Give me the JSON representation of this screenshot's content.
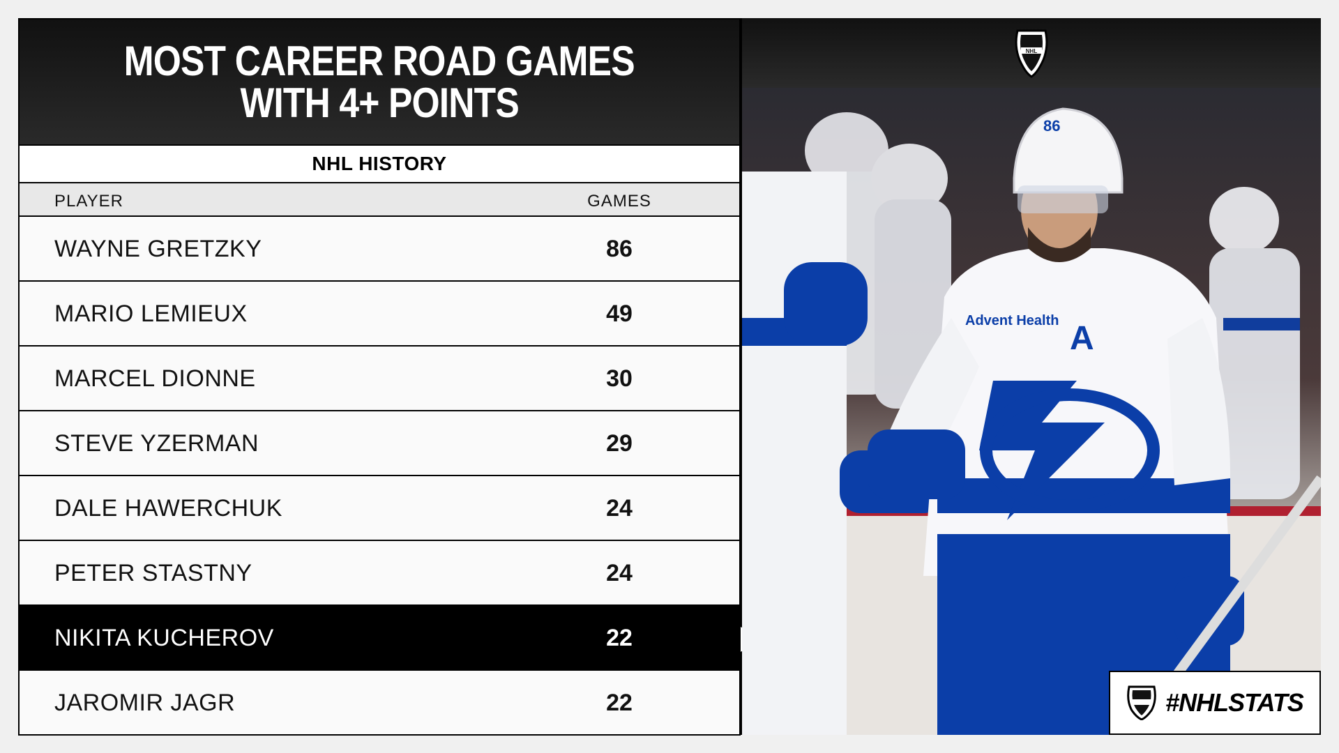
{
  "header": {
    "title_line1": "MOST CAREER ROAD GAMES",
    "title_line2": "WITH 4+ POINTS",
    "subtitle": "NHL HISTORY"
  },
  "table": {
    "col_player": "PLAYER",
    "col_games": "GAMES",
    "rows": [
      {
        "player": "WAYNE GRETZKY",
        "games": "86"
      },
      {
        "player": "MARIO LEMIEUX",
        "games": "49"
      },
      {
        "player": "MARCEL DIONNE",
        "games": "30"
      },
      {
        "player": "STEVE YZERMAN",
        "games": "29"
      },
      {
        "player": "DALE HAWERCHUK",
        "games": "24"
      },
      {
        "player": "PETER STASTNY",
        "games": "24"
      },
      {
        "player": "NIKITA KUCHEROV",
        "games": "22",
        "highlighted": true
      },
      {
        "player": "JAROMIR JAGR",
        "games": "22"
      }
    ]
  },
  "badge": {
    "hashtag": "#NHLSTATS"
  },
  "photo": {
    "jersey_number": "86",
    "captain_letter": "A",
    "sponsor": "Advent Health"
  },
  "colors": {
    "accent_blue": "#0b3ea8",
    "highlight_row": "#000000"
  },
  "icons": [
    "nhl-shield-logo",
    "pointer-arrow-icon"
  ]
}
